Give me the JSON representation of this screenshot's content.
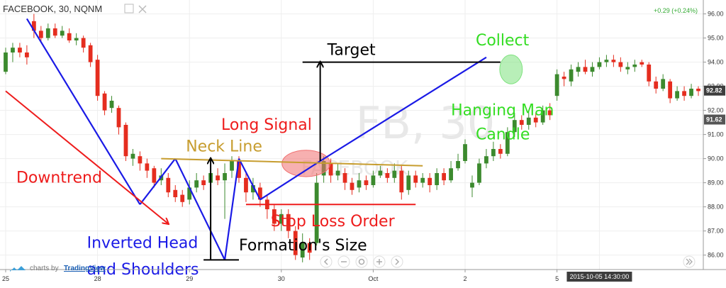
{
  "header": {
    "symbol_title": "FACEBOOK, 30, NQNM",
    "change": "+0.29 (+0.24%)",
    "watermark_big": "FB, 30",
    "watermark_small": "FACEBOOK"
  },
  "branding": {
    "prefix": "charts by",
    "brand": "TradingView"
  },
  "colors": {
    "up": "#3c8a2e",
    "down": "#e52d1f",
    "blue": "#1a1ae6",
    "red": "#ee1c1c",
    "gold": "#c79d2f",
    "black": "#000000",
    "green_text": "#33dd22",
    "price_badge": "#3d3d3d",
    "last_badge": "#555555"
  },
  "chart_data": {
    "type": "candlestick",
    "ylim": [
      85.4,
      96.4
    ],
    "y_ticks": [
      "86.00",
      "87.00",
      "88.00",
      "89.00",
      "90.00",
      "91.00",
      "92.00",
      "93.00",
      "94.00",
      "95.00",
      "96.00"
    ],
    "x_labels": [
      {
        "label": "25",
        "at": 0
      },
      {
        "label": "28",
        "at": 13
      },
      {
        "label": "29",
        "at": 26
      },
      {
        "label": "30",
        "at": 39
      },
      {
        "label": "Oct",
        "at": 52
      },
      {
        "label": "2",
        "at": 65
      },
      {
        "label": "5",
        "at": 78
      },
      {
        "label": "2015-10-05 14:30:00",
        "at": 84
      }
    ],
    "price_badges": [
      {
        "label": "92.82",
        "value": 92.82
      },
      {
        "label": "91.62",
        "value": 91.62
      }
    ],
    "candles": [
      [
        93.6,
        94.4,
        94.6,
        93.5
      ],
      [
        94.4,
        94.6,
        94.8,
        94.0
      ],
      [
        94.6,
        94.4,
        94.8,
        94.2
      ],
      [
        94.4,
        94.2,
        94.7,
        93.9
      ],
      [
        95.7,
        95.3,
        96.0,
        95.0
      ],
      [
        95.3,
        95.0,
        95.5,
        94.8
      ],
      [
        95.0,
        95.4,
        95.6,
        94.9
      ],
      [
        95.4,
        95.1,
        95.6,
        95.0
      ],
      [
        95.1,
        95.3,
        95.5,
        95.0
      ],
      [
        95.2,
        94.9,
        95.4,
        94.8
      ],
      [
        94.9,
        95.0,
        95.2,
        94.7
      ],
      [
        95.0,
        94.6,
        95.1,
        94.4
      ],
      [
        94.7,
        94.0,
        94.8,
        93.8
      ],
      [
        94.1,
        92.6,
        94.3,
        92.4
      ],
      [
        92.7,
        92.0,
        92.8,
        91.8
      ],
      [
        92.1,
        92.4,
        92.6,
        91.9
      ],
      [
        92.1,
        91.3,
        92.2,
        91.0
      ],
      [
        91.4,
        90.1,
        91.5,
        89.9
      ],
      [
        90.0,
        90.2,
        90.4,
        89.7
      ],
      [
        90.1,
        89.8,
        90.3,
        89.5
      ],
      [
        89.8,
        89.5,
        90.0,
        89.2
      ],
      [
        89.6,
        89.0,
        89.7,
        88.8
      ],
      [
        89.1,
        89.3,
        89.6,
        88.9
      ],
      [
        89.2,
        88.6,
        89.4,
        88.4
      ],
      [
        88.7,
        88.4,
        88.9,
        88.2
      ],
      [
        88.5,
        88.2,
        88.7,
        88.0
      ],
      [
        88.3,
        88.8,
        89.1,
        88.1
      ],
      [
        88.8,
        89.1,
        89.4,
        88.6
      ],
      [
        89.1,
        88.9,
        89.3,
        88.7
      ],
      [
        89.0,
        89.4,
        89.7,
        88.8
      ],
      [
        89.3,
        89.1,
        89.6,
        88.9
      ],
      [
        89.1,
        89.4,
        89.8,
        87.5
      ],
      [
        89.5,
        89.9,
        90.1,
        89.2
      ],
      [
        89.9,
        89.2,
        90.1,
        89.0
      ],
      [
        89.2,
        88.6,
        89.4,
        88.2
      ],
      [
        88.6,
        88.9,
        89.2,
        88.3
      ],
      [
        88.8,
        88.3,
        89.0,
        88.0
      ],
      [
        88.3,
        87.9,
        88.5,
        87.5
      ],
      [
        87.9,
        87.3,
        88.1,
        87.0
      ],
      [
        87.3,
        87.7,
        87.9,
        87.0
      ],
      [
        87.7,
        87.0,
        87.9,
        86.7
      ],
      [
        87.0,
        86.0,
        87.2,
        85.8
      ],
      [
        85.9,
        86.5,
        86.9,
        85.7
      ],
      [
        86.5,
        86.1,
        86.7,
        85.8
      ],
      [
        86.5,
        89.0,
        89.4,
        86.4
      ],
      [
        89.3,
        89.9,
        90.1,
        89.0
      ],
      [
        89.8,
        89.3,
        90.0,
        89.0
      ],
      [
        89.3,
        89.5,
        89.8,
        89.1
      ],
      [
        89.4,
        89.0,
        89.6,
        88.7
      ],
      [
        89.0,
        88.7,
        89.2,
        88.5
      ],
      [
        88.8,
        89.1,
        89.4,
        88.6
      ],
      [
        89.1,
        88.9,
        89.3,
        88.7
      ],
      [
        88.9,
        89.3,
        89.5,
        88.8
      ],
      [
        89.3,
        89.5,
        89.7,
        89.2
      ],
      [
        89.4,
        89.2,
        89.6,
        89.0
      ],
      [
        89.2,
        89.5,
        89.8,
        89.0
      ],
      [
        89.5,
        88.6,
        89.7,
        88.3
      ],
      [
        88.7,
        89.3,
        89.5,
        88.5
      ],
      [
        89.3,
        89.0,
        89.5,
        88.8
      ],
      [
        89.0,
        89.2,
        89.4,
        88.8
      ],
      [
        89.2,
        88.9,
        89.4,
        88.6
      ],
      [
        88.9,
        89.4,
        89.6,
        88.7
      ],
      [
        89.4,
        89.1,
        89.6,
        88.9
      ],
      [
        89.1,
        89.6,
        89.9,
        89.0
      ],
      [
        89.6,
        89.9,
        90.2,
        89.5
      ],
      [
        89.9,
        90.6,
        90.8,
        89.8
      ],
      [
        88.8,
        89.0,
        89.3,
        88.4
      ],
      [
        89.0,
        89.8,
        90.0,
        88.9
      ],
      [
        89.8,
        90.1,
        90.4,
        89.6
      ],
      [
        90.1,
        90.4,
        90.7,
        89.9
      ],
      [
        90.4,
        90.2,
        90.6,
        90.0
      ],
      [
        90.2,
        91.1,
        91.3,
        90.1
      ],
      [
        91.1,
        91.6,
        91.9,
        90.9
      ],
      [
        91.6,
        91.4,
        91.8,
        91.2
      ],
      [
        91.4,
        91.7,
        92.0,
        91.2
      ],
      [
        91.7,
        91.5,
        91.9,
        91.3
      ],
      [
        91.5,
        92.0,
        92.2,
        91.4
      ],
      [
        92.0,
        91.8,
        92.3,
        91.6
      ],
      [
        92.6,
        93.5,
        93.7,
        92.4
      ],
      [
        93.4,
        93.3,
        93.6,
        93.0
      ],
      [
        93.2,
        93.7,
        93.9,
        93.0
      ],
      [
        93.6,
        93.8,
        94.0,
        93.4
      ],
      [
        93.8,
        93.6,
        94.1,
        93.5
      ],
      [
        93.6,
        93.8,
        94.0,
        93.4
      ],
      [
        93.8,
        94.0,
        94.2,
        93.7
      ],
      [
        94.0,
        94.1,
        94.3,
        93.8
      ],
      [
        94.1,
        94.0,
        94.3,
        93.8
      ],
      [
        94.0,
        93.8,
        94.2,
        93.6
      ],
      [
        93.7,
        93.8,
        94.0,
        93.5
      ],
      [
        93.8,
        93.9,
        94.1,
        93.6
      ],
      [
        94.0,
        93.9,
        94.1,
        93.8
      ],
      [
        93.9,
        93.2,
        94.0,
        93.0
      ],
      [
        93.2,
        92.9,
        93.4,
        92.7
      ],
      [
        92.9,
        93.3,
        93.5,
        92.8
      ],
      [
        93.2,
        92.5,
        93.3,
        92.3
      ],
      [
        92.5,
        92.8,
        93.0,
        92.4
      ],
      [
        92.8,
        92.6,
        93.0,
        92.4
      ],
      [
        92.6,
        92.9,
        93.1,
        92.5
      ],
      [
        92.9,
        92.8,
        93.0,
        92.6
      ]
    ],
    "trend_lines": [
      {
        "name": "downtrend-line",
        "color": "blue",
        "points": [
          [
            3,
            95.8
          ],
          [
            19,
            88.1
          ]
        ]
      },
      {
        "name": "left-shoulder-rise",
        "color": "blue",
        "points": [
          [
            19,
            88.1
          ],
          [
            24,
            90.0
          ]
        ]
      },
      {
        "name": "head-left-leg",
        "color": "blue",
        "points": [
          [
            24,
            90.0
          ],
          [
            31,
            85.8
          ]
        ]
      },
      {
        "name": "head-right-leg",
        "color": "blue",
        "points": [
          [
            31,
            85.8
          ],
          [
            33,
            90.0
          ]
        ]
      },
      {
        "name": "right-shoulder-drop",
        "color": "blue",
        "points": [
          [
            33,
            90.0
          ],
          [
            36,
            88.3
          ]
        ]
      },
      {
        "name": "right-shoulder-rise",
        "color": "blue",
        "points": [
          [
            36,
            88.3
          ],
          [
            44.5,
            89.9
          ]
        ]
      },
      {
        "name": "uptrend-line",
        "color": "blue",
        "points": [
          [
            44.5,
            89.9
          ],
          [
            68,
            94.2
          ]
        ]
      },
      {
        "name": "red-downtrend-arrow",
        "color": "red",
        "points": [
          [
            0,
            92.8
          ],
          [
            23,
            87.3
          ]
        ],
        "arrow": true
      },
      {
        "name": "neck-line",
        "color": "gold",
        "points": [
          [
            22,
            90.0
          ],
          [
            59,
            89.7
          ]
        ]
      },
      {
        "name": "stop-loss-line",
        "color": "red",
        "points": [
          [
            34,
            88.1
          ],
          [
            58,
            88.1
          ]
        ]
      },
      {
        "name": "target-line",
        "color": "black",
        "points": [
          [
            42,
            94.0
          ],
          [
            70,
            94.0
          ]
        ]
      },
      {
        "name": "target-arrow",
        "color": "black",
        "points": [
          [
            44.5,
            89.9
          ],
          [
            44.5,
            94.0
          ]
        ],
        "arrow": true
      },
      {
        "name": "formation-size-arrow",
        "color": "black",
        "points": [
          [
            29,
            85.8
          ],
          [
            29,
            90.0
          ]
        ],
        "arrow": true
      },
      {
        "name": "formation-base",
        "color": "black",
        "points": [
          [
            28,
            85.8
          ],
          [
            33,
            85.8
          ]
        ]
      }
    ],
    "annotations": [
      {
        "text": "Downtrend",
        "color": "red",
        "at": [
          1.5,
          89.0
        ],
        "size": 22
      },
      {
        "text": "Inverted Head",
        "color": "blue",
        "at": [
          11.5,
          86.3
        ],
        "size": 22
      },
      {
        "text": "and Shoulders",
        "color": "blue",
        "at": [
          11.5,
          85.2
        ],
        "size": 22
      },
      {
        "text": "Neck Line",
        "color": "gold",
        "at": [
          25.5,
          90.3
        ],
        "size": 22
      },
      {
        "text": "Long Signal",
        "color": "red",
        "at": [
          30.5,
          91.2
        ],
        "size": 22
      },
      {
        "text": "Formation's Size",
        "color": "black",
        "at": [
          33,
          86.2
        ],
        "size": 22
      },
      {
        "text": "Stop Loss Order",
        "color": "red",
        "at": [
          37.5,
          87.2
        ],
        "size": 22
      },
      {
        "text": "Target",
        "color": "black",
        "at": [
          45.5,
          94.3
        ],
        "size": 22
      },
      {
        "text": "Collect",
        "color": "green_text",
        "at": [
          66.5,
          94.7
        ],
        "size": 22
      },
      {
        "text": "Hanging Man",
        "color": "green_text",
        "at": [
          63,
          91.8
        ],
        "size": 22
      },
      {
        "text": "Candle",
        "color": "green_text",
        "at": [
          66.5,
          90.8
        ],
        "size": 22
      }
    ],
    "highlights": [
      {
        "name": "long-signal-ellipse",
        "color": "#f07070",
        "at": [
          42.5,
          89.8
        ],
        "rx": 3.4,
        "ry": 0.55
      },
      {
        "name": "hanging-man-ellipse",
        "color": "#7ee27e",
        "at": [
          71.5,
          93.7
        ],
        "rx": 1.6,
        "ry": 0.6
      }
    ]
  }
}
